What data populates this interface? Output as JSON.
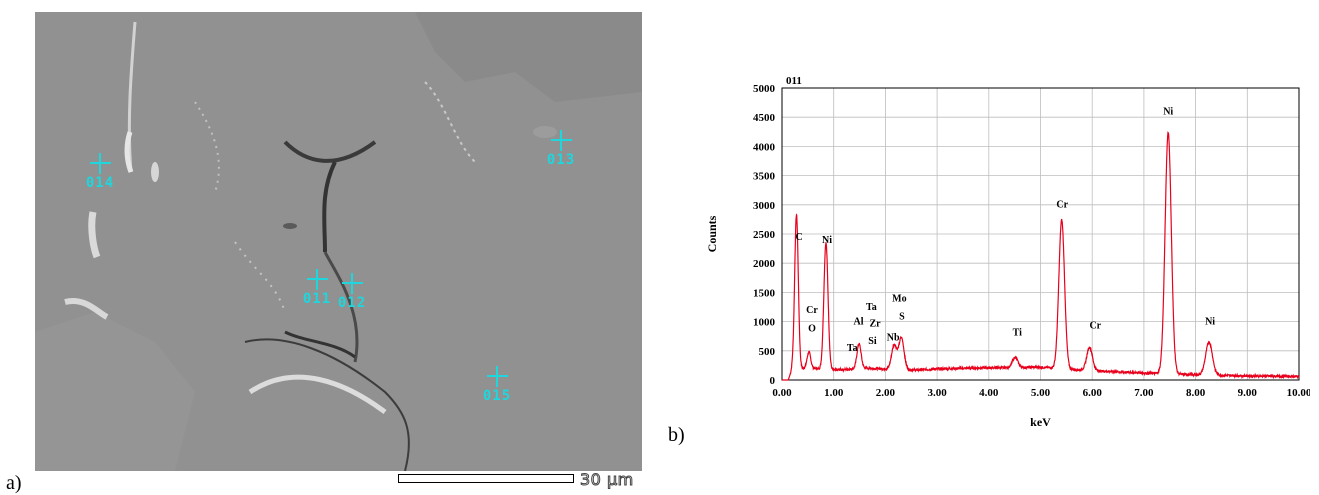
{
  "panels": {
    "a_label": "a)",
    "b_label": "b)"
  },
  "micrograph": {
    "scale_text": "30 µm",
    "markers": [
      {
        "id": "011"
      },
      {
        "id": "012"
      },
      {
        "id": "013"
      },
      {
        "id": "014"
      },
      {
        "id": "015"
      }
    ]
  },
  "colors": {
    "marker": "#1fd6dc",
    "spectrum_line": "#e8001c",
    "sem_background": "#909090"
  },
  "chart_data": {
    "type": "line",
    "title": "011",
    "xlabel": "keV",
    "ylabel": "Counts",
    "xlim": [
      0,
      10
    ],
    "ylim": [
      0,
      5000
    ],
    "x_ticks": [
      "0.00",
      "1.00",
      "2.00",
      "3.00",
      "4.00",
      "5.00",
      "6.00",
      "7.00",
      "8.00",
      "9.00",
      "10.00"
    ],
    "y_ticks": [
      "0",
      "500",
      "1000",
      "1500",
      "2000",
      "2500",
      "3000",
      "3500",
      "4000",
      "4500",
      "5000"
    ],
    "grid": true,
    "baseline": [
      [
        0.12,
        0
      ],
      [
        0.2,
        200
      ],
      [
        0.6,
        200
      ],
      [
        1.0,
        170
      ],
      [
        1.6,
        200
      ],
      [
        2.0,
        190
      ],
      [
        2.6,
        170
      ],
      [
        3.0,
        190
      ],
      [
        4.0,
        210
      ],
      [
        5.0,
        220
      ],
      [
        6.0,
        160
      ],
      [
        7.0,
        120
      ],
      [
        8.0,
        90
      ],
      [
        9.0,
        70
      ],
      [
        10.0,
        60
      ]
    ],
    "peaks": [
      {
        "x": 0.28,
        "height": 2830,
        "width": 0.035
      },
      {
        "x": 0.52,
        "height": 480,
        "width": 0.035
      },
      {
        "x": 0.85,
        "height": 2350,
        "width": 0.04
      },
      {
        "x": 1.49,
        "height": 620,
        "width": 0.04
      },
      {
        "x": 1.74,
        "height": 200,
        "width": 0.04
      },
      {
        "x": 2.17,
        "height": 600,
        "width": 0.05
      },
      {
        "x": 2.31,
        "height": 720,
        "width": 0.05
      },
      {
        "x": 4.51,
        "height": 390,
        "width": 0.05
      },
      {
        "x": 5.41,
        "height": 2740,
        "width": 0.055
      },
      {
        "x": 5.95,
        "height": 560,
        "width": 0.055
      },
      {
        "x": 7.47,
        "height": 4240,
        "width": 0.06
      },
      {
        "x": 8.26,
        "height": 650,
        "width": 0.065
      }
    ],
    "annotations": [
      {
        "text": "C",
        "x": 0.33,
        "y": 2400
      },
      {
        "text": "Ni",
        "x": 0.87,
        "y": 2350
      },
      {
        "text": "Cr",
        "x": 0.58,
        "y": 1150
      },
      {
        "text": "O",
        "x": 0.58,
        "y": 830
      },
      {
        "text": "Ta",
        "x": 1.73,
        "y": 1200
      },
      {
        "text": "Al",
        "x": 1.48,
        "y": 950
      },
      {
        "text": "Zr",
        "x": 1.8,
        "y": 920
      },
      {
        "text": "Si",
        "x": 1.75,
        "y": 620
      },
      {
        "text": "Ta",
        "x": 1.36,
        "y": 500
      },
      {
        "text": "Mo",
        "x": 2.27,
        "y": 1340
      },
      {
        "text": "S",
        "x": 2.32,
        "y": 1040
      },
      {
        "text": "Nb",
        "x": 2.15,
        "y": 680
      },
      {
        "text": "Ti",
        "x": 4.55,
        "y": 760
      },
      {
        "text": "Cr",
        "x": 5.42,
        "y": 2950
      },
      {
        "text": "Cr",
        "x": 6.06,
        "y": 880
      },
      {
        "text": "Ni",
        "x": 7.47,
        "y": 4550
      },
      {
        "text": "Ni",
        "x": 8.28,
        "y": 950
      }
    ]
  }
}
